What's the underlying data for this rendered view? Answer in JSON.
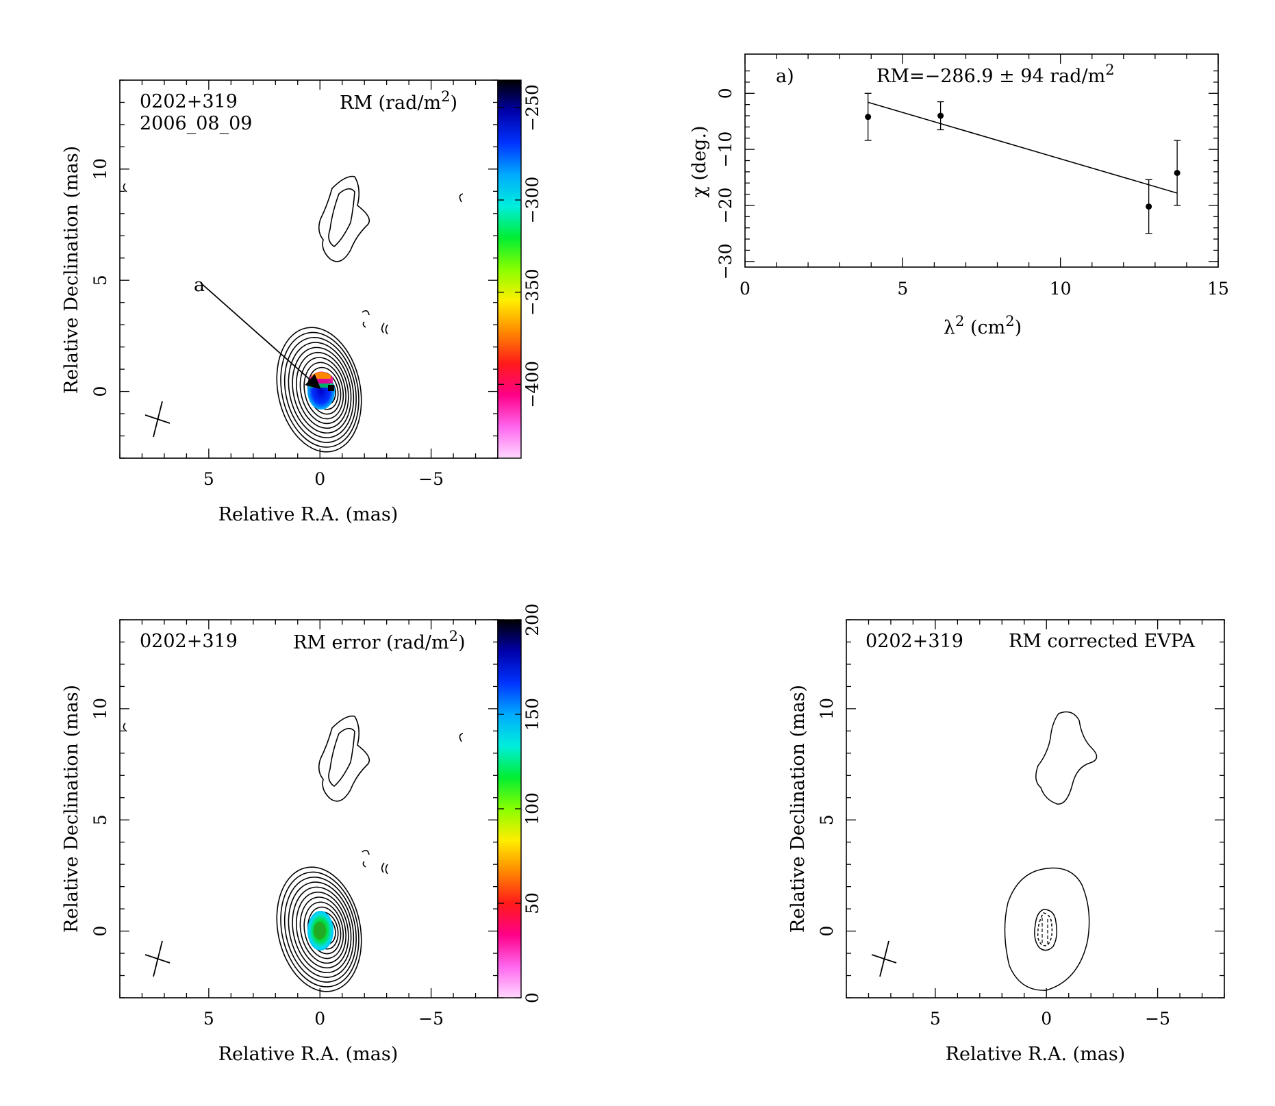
{
  "panels": {
    "rm_map": {
      "source": "0202+319",
      "epoch": "2006_08_09",
      "title_pre": "RM (rad/m",
      "title_sup": "2",
      "title_post": ")",
      "xlabel": "Relative R.A. (mas)",
      "ylabel": "Relative Declination (mas)",
      "x_ticks": [
        "5",
        "0",
        "−5"
      ],
      "y_ticks": [
        "0",
        "5",
        "10"
      ],
      "arrow_label": "a",
      "colorbar": {
        "ticks": [
          "−250",
          "−300",
          "−350",
          "−400"
        ],
        "range": [
          -440,
          -235
        ],
        "colors": [
          "#ffd8ff",
          "#ff66ee",
          "#ff0088",
          "#ff1a1a",
          "#ff8800",
          "#ffee00",
          "#88ff00",
          "#00ee33",
          "#00eedd",
          "#00aaff",
          "#0033ff",
          "#0000aa",
          "#000000"
        ]
      }
    },
    "rm_fit": {
      "panel_label": "a)",
      "annotation_pre": "RM=−286.9 ± 94 rad/m",
      "annotation_sup": "2",
      "xlabel_pre": "λ",
      "xlabel_sup": "2",
      "xlabel_post": " (cm",
      "xlabel_sup2": "2",
      "xlabel_end": ")",
      "ylabel": "χ (deg.)",
      "x_ticks": [
        "0",
        "5",
        "10",
        "15"
      ],
      "y_ticks": [
        "0",
        "−10",
        "−20",
        "−30"
      ]
    },
    "rm_error": {
      "source": "0202+319",
      "title_pre": "RM error (rad/m",
      "title_sup": "2",
      "title_post": ")",
      "xlabel": "Relative R.A. (mas)",
      "ylabel": "Relative Declination (mas)",
      "x_ticks": [
        "5",
        "0",
        "−5"
      ],
      "y_ticks": [
        "0",
        "5",
        "10"
      ],
      "colorbar": {
        "ticks": [
          "0",
          "50",
          "100",
          "150",
          "200"
        ],
        "range": [
          0,
          200
        ],
        "colors": [
          "#ffd8ff",
          "#ff66ee",
          "#ff0088",
          "#ff1a1a",
          "#ff8800",
          "#ffee00",
          "#88ff00",
          "#00ee33",
          "#00eedd",
          "#00aaff",
          "#0033ff",
          "#0000aa",
          "#000000"
        ]
      }
    },
    "evpa": {
      "source": "0202+319",
      "title": "RM corrected EVPA",
      "xlabel": "Relative R.A. (mas)",
      "ylabel": "Relative Declination (mas)",
      "x_ticks": [
        "5",
        "0",
        "−5"
      ],
      "y_ticks": [
        "0",
        "5",
        "10"
      ]
    }
  },
  "chart_data": [
    {
      "type": "heatmap",
      "title": "RM (rad/m2)",
      "source": "0202+319",
      "epoch": "2006_08_09",
      "xlabel": "Relative R.A. (mas)",
      "ylabel": "Relative Declination (mas)",
      "xlim": [
        9,
        -8
      ],
      "ylim": [
        -3,
        14
      ],
      "colorbar_range": [
        -440,
        -235
      ],
      "colorbar_ticks": [
        -250,
        -300,
        -350,
        -400
      ],
      "core_rm_value": -286.9,
      "annotation": "a",
      "contours": true
    },
    {
      "type": "scatter",
      "title": "RM=−286.9 ± 94 rad/m2",
      "xlabel": "λ2 (cm2)",
      "ylabel": "χ (deg.)",
      "xlim": [
        0,
        15
      ],
      "ylim": [
        -31,
        7
      ],
      "series": [
        {
          "x": [
            3.9,
            6.2,
            12.8,
            13.7
          ],
          "y": [
            -4.2,
            -4.0,
            -20.2,
            -14.2
          ],
          "yerr": [
            4.2,
            2.5,
            4.8,
            5.8
          ]
        }
      ],
      "fit_line": {
        "x": [
          3.9,
          13.7
        ],
        "y": [
          -1.6,
          -17.8
        ]
      }
    },
    {
      "type": "heatmap",
      "title": "RM error (rad/m2)",
      "source": "0202+319",
      "xlabel": "Relative R.A. (mas)",
      "ylabel": "Relative Declination (mas)",
      "xlim": [
        9,
        -8
      ],
      "ylim": [
        -3,
        14
      ],
      "colorbar_range": [
        0,
        200
      ],
      "colorbar_ticks": [
        0,
        50,
        100,
        150,
        200
      ],
      "core_error_value": 90,
      "contours": true
    },
    {
      "type": "heatmap",
      "title": "RM corrected EVPA",
      "source": "0202+319",
      "xlabel": "Relative R.A. (mas)",
      "ylabel": "Relative Declination (mas)",
      "xlim": [
        9,
        -8
      ],
      "ylim": [
        -3,
        14
      ],
      "contours": true
    }
  ]
}
